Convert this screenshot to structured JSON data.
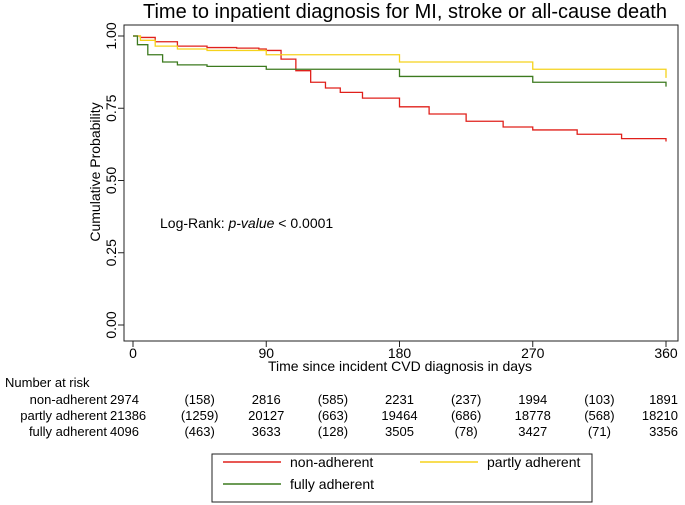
{
  "chart_data": {
    "type": "line",
    "title": "Time to inpatient diagnosis for MI, stroke or all-cause death",
    "xlabel": "Time since incident CVD diagnosis in days",
    "ylabel": "Cumulative Probability",
    "xlim": [
      0,
      365
    ],
    "ylim": [
      0,
      1
    ],
    "xticks": [
      0,
      90,
      180,
      270,
      360
    ],
    "yticks": [
      0.0,
      0.25,
      0.5,
      0.75,
      1.0
    ],
    "ytick_labels": [
      "0.00",
      "0.25",
      "0.50",
      "0.75",
      "1.00"
    ],
    "annotation": {
      "prefix": "Log-Rank: ",
      "italic": "p-value",
      "suffix": " < 0.0001"
    },
    "series": [
      {
        "name": "non-adherent",
        "color": "#e0201b",
        "x": [
          0,
          5,
          15,
          30,
          50,
          70,
          85,
          90,
          100,
          110,
          120,
          130,
          140,
          155,
          180,
          200,
          225,
          250,
          270,
          300,
          330,
          360
        ],
        "y": [
          1.0,
          0.995,
          0.98,
          0.965,
          0.96,
          0.958,
          0.955,
          0.95,
          0.92,
          0.88,
          0.84,
          0.82,
          0.805,
          0.785,
          0.755,
          0.73,
          0.705,
          0.685,
          0.675,
          0.66,
          0.645,
          0.635
        ]
      },
      {
        "name": "partly adherent",
        "color": "#f5d21c",
        "x": [
          0,
          5,
          15,
          30,
          50,
          90,
          180,
          270,
          360
        ],
        "y": [
          1.0,
          0.985,
          0.965,
          0.955,
          0.95,
          0.935,
          0.91,
          0.885,
          0.855
        ]
      },
      {
        "name": "fully adherent",
        "color": "#3c7a1f",
        "x": [
          0,
          3,
          10,
          20,
          30,
          50,
          90,
          180,
          270,
          360
        ],
        "y": [
          1.0,
          0.97,
          0.935,
          0.91,
          0.9,
          0.895,
          0.885,
          0.86,
          0.84,
          0.825
        ]
      }
    ],
    "risk_table": {
      "heading": "Number at risk",
      "rows": [
        {
          "label": "non-adherent",
          "cells": [
            "2974",
            "(158)",
            "2816",
            "(585)",
            "2231",
            "(237)",
            "1994",
            "(103)",
            "1891"
          ]
        },
        {
          "label": "partly adherent",
          "cells": [
            "21386",
            "(1259)",
            "20127",
            "(663)",
            "19464",
            "(686)",
            "18778",
            "(568)",
            "18210"
          ]
        },
        {
          "label": "fully adherent",
          "cells": [
            "4096",
            "(463)",
            "3633",
            "(128)",
            "3505",
            "(78)",
            "3427",
            "(71)",
            "3356"
          ]
        }
      ]
    },
    "legend": [
      {
        "label": "non-adherent",
        "color": "#e0201b"
      },
      {
        "label": "partly adherent",
        "color": "#f5d21c"
      },
      {
        "label": "fully adherent",
        "color": "#3c7a1f"
      }
    ]
  }
}
